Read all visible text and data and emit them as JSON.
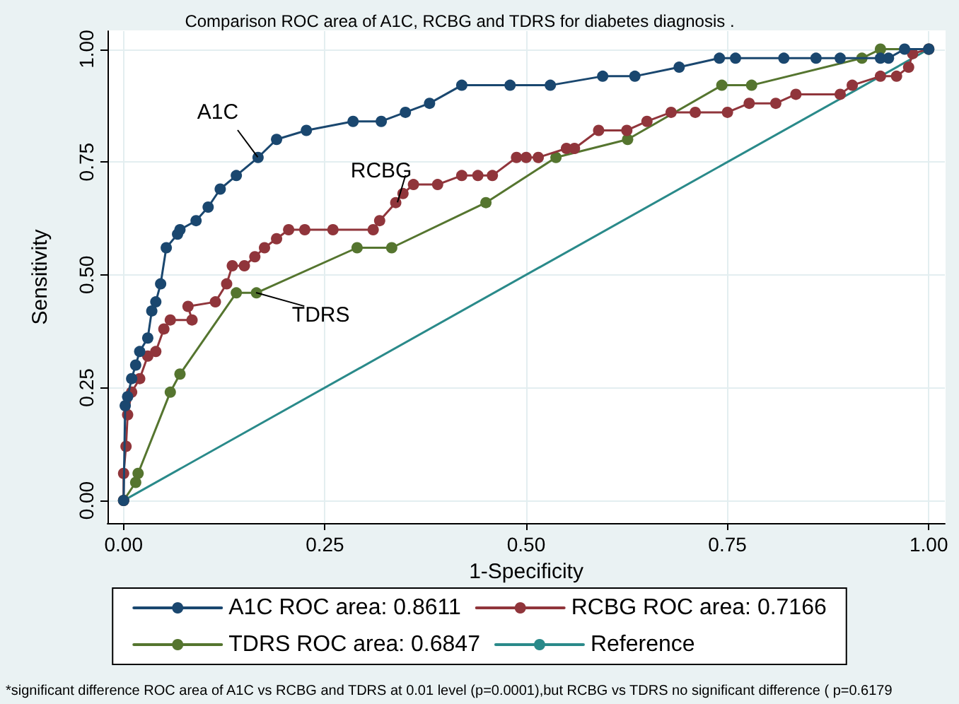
{
  "chart_data": {
    "type": "line",
    "title": "Comparison ROC area of A1C, RCBG and TDRS for diabetes diagnosis .",
    "xlabel": "1-Specificity",
    "ylabel": "Sensitivity",
    "xlim": [
      -0.02,
      1.02
    ],
    "ylim": [
      -0.05,
      1.04
    ],
    "xticks": [
      {
        "value": 0,
        "label": "0.00"
      },
      {
        "value": 0.25,
        "label": "0.25"
      },
      {
        "value": 0.5,
        "label": "0.50"
      },
      {
        "value": 0.75,
        "label": "0.75"
      },
      {
        "value": 1,
        "label": "1.00"
      }
    ],
    "yticks": [
      {
        "value": 0,
        "label": "0.00"
      },
      {
        "value": 0.25,
        "label": "0.25"
      },
      {
        "value": 0.5,
        "label": "0.50"
      },
      {
        "value": 0.75,
        "label": "0.75"
      },
      {
        "value": 1,
        "label": "1.00"
      }
    ],
    "grid": true,
    "legend": "bottom",
    "marker": "circle",
    "line_style": "solid",
    "series": [
      {
        "name": "A1C ROC area: 0.8611",
        "color": "#1a476f",
        "x": [
          0,
          0.002,
          0.005,
          0.01,
          0.015,
          0.02,
          0.03,
          0.035,
          0.04,
          0.046,
          0.053,
          0.067,
          0.07,
          0.09,
          0.105,
          0.12,
          0.14,
          0.167,
          0.19,
          0.227,
          0.285,
          0.32,
          0.35,
          0.38,
          0.42,
          0.48,
          0.53,
          0.595,
          0.635,
          0.69,
          0.74,
          0.76,
          0.82,
          0.86,
          0.89,
          0.94,
          0.95,
          0.97,
          1
        ],
        "values": [
          0,
          0.21,
          0.23,
          0.27,
          0.3,
          0.33,
          0.36,
          0.42,
          0.44,
          0.48,
          0.56,
          0.59,
          0.6,
          0.62,
          0.65,
          0.69,
          0.72,
          0.76,
          0.8,
          0.82,
          0.84,
          0.84,
          0.86,
          0.88,
          0.92,
          0.92,
          0.92,
          0.94,
          0.94,
          0.96,
          0.98,
          0.98,
          0.98,
          0.98,
          0.98,
          0.98,
          0.98,
          1,
          1
        ]
      },
      {
        "name": "RCBG ROC area: 0.7166",
        "color": "#90353b",
        "x": [
          0,
          0,
          0.003,
          0.005,
          0.01,
          0.02,
          0.03,
          0.04,
          0.05,
          0.058,
          0.085,
          0.08,
          0.114,
          0.128,
          0.135,
          0.15,
          0.163,
          0.175,
          0.19,
          0.205,
          0.225,
          0.26,
          0.31,
          0.318,
          0.338,
          0.347,
          0.36,
          0.39,
          0.42,
          0.44,
          0.458,
          0.488,
          0.5,
          0.515,
          0.55,
          0.56,
          0.59,
          0.625,
          0.65,
          0.68,
          0.71,
          0.75,
          0.777,
          0.81,
          0.835,
          0.89,
          0.905,
          0.94,
          0.96,
          0.975,
          0.98,
          1
        ],
        "values": [
          0,
          0.06,
          0.12,
          0.19,
          0.24,
          0.27,
          0.32,
          0.33,
          0.38,
          0.4,
          0.4,
          0.43,
          0.44,
          0.48,
          0.52,
          0.52,
          0.54,
          0.56,
          0.58,
          0.6,
          0.6,
          0.6,
          0.6,
          0.62,
          0.66,
          0.68,
          0.7,
          0.7,
          0.72,
          0.72,
          0.72,
          0.76,
          0.76,
          0.76,
          0.78,
          0.78,
          0.82,
          0.82,
          0.84,
          0.86,
          0.86,
          0.86,
          0.88,
          0.88,
          0.9,
          0.9,
          0.92,
          0.94,
          0.94,
          0.96,
          0.99,
          1
        ]
      },
      {
        "name": "TDRS ROC area: 0.6847",
        "color": "#55752f",
        "x": [
          0,
          0.015,
          0.018,
          0.058,
          0.07,
          0.14,
          0.165,
          0.29,
          0.333,
          0.45,
          0.537,
          0.626,
          0.743,
          0.78,
          0.917,
          0.94,
          1
        ],
        "values": [
          0,
          0.04,
          0.06,
          0.24,
          0.28,
          0.46,
          0.46,
          0.56,
          0.56,
          0.66,
          0.76,
          0.8,
          0.92,
          0.92,
          0.98,
          1,
          1
        ]
      },
      {
        "name": "Reference",
        "color": "#2a8a8a",
        "marker": "none",
        "x": [
          0,
          1
        ],
        "values": [
          0,
          1
        ]
      }
    ],
    "annotations": [
      {
        "text": "A1C",
        "x": 0.167,
        "y": 0.76
      },
      {
        "text": "RCBG",
        "x": 0.34,
        "y": 0.66
      },
      {
        "text": "TDRS",
        "x": 0.165,
        "y": 0.46
      },
      "*significant difference ROC area of A1C vs RCBG and TDRS at 0.01 level (p=0.0001),but RCBG vs TDRS no significant difference ( p=0.6179"
    ]
  }
}
